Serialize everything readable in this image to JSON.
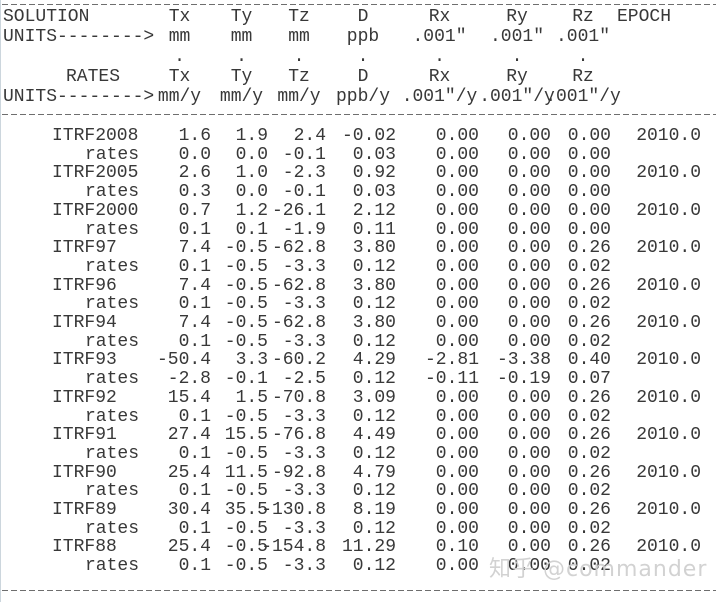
{
  "table": {
    "header": {
      "solution_label": "SOLUTION",
      "units_arrow": "UNITS-------->",
      "rates_label": "RATES",
      "epoch_label": "EPOCH",
      "derivative_dot": ".",
      "columns": [
        "Tx",
        "Ty",
        "Tz",
        "D",
        "Rx",
        "Ry",
        "Rz"
      ],
      "units": [
        "mm",
        "mm",
        "mm",
        "ppb",
        ".001″",
        ".001″",
        ".001″"
      ],
      "rate_units": [
        "mm/y",
        "mm/y",
        "mm/y",
        "ppb/y",
        ".001″/y",
        ".001″/y",
        ".001″/y"
      ]
    },
    "rows": [
      {
        "name": "ITRF2008",
        "values": [
          "1.6",
          "1.9",
          "2.4",
          "-0.02",
          "0.00",
          "0.00",
          "0.00"
        ],
        "epoch": "2010.0"
      },
      {
        "name": "rates",
        "values": [
          "0.0",
          "0.0",
          "-0.1",
          "0.03",
          "0.00",
          "0.00",
          "0.00"
        ],
        "epoch": ""
      },
      {
        "name": "ITRF2005",
        "values": [
          "2.6",
          "1.0",
          "-2.3",
          "0.92",
          "0.00",
          "0.00",
          "0.00"
        ],
        "epoch": "2010.0"
      },
      {
        "name": "rates",
        "values": [
          "0.3",
          "0.0",
          "-0.1",
          "0.03",
          "0.00",
          "0.00",
          "0.00"
        ],
        "epoch": ""
      },
      {
        "name": "ITRF2000",
        "values": [
          "0.7",
          "1.2",
          "-26.1",
          "2.12",
          "0.00",
          "0.00",
          "0.00"
        ],
        "epoch": "2010.0"
      },
      {
        "name": "rates",
        "values": [
          "0.1",
          "0.1",
          "-1.9",
          "0.11",
          "0.00",
          "0.00",
          "0.00"
        ],
        "epoch": ""
      },
      {
        "name": "ITRF97",
        "values": [
          "7.4",
          "-0.5",
          "-62.8",
          "3.80",
          "0.00",
          "0.00",
          "0.26"
        ],
        "epoch": "2010.0"
      },
      {
        "name": "rates",
        "values": [
          "0.1",
          "-0.5",
          "-3.3",
          "0.12",
          "0.00",
          "0.00",
          "0.02"
        ],
        "epoch": ""
      },
      {
        "name": "ITRF96",
        "values": [
          "7.4",
          "-0.5",
          "-62.8",
          "3.80",
          "0.00",
          "0.00",
          "0.26"
        ],
        "epoch": "2010.0"
      },
      {
        "name": "rates",
        "values": [
          "0.1",
          "-0.5",
          "-3.3",
          "0.12",
          "0.00",
          "0.00",
          "0.02"
        ],
        "epoch": ""
      },
      {
        "name": "ITRF94",
        "values": [
          "7.4",
          "-0.5",
          "-62.8",
          "3.80",
          "0.00",
          "0.00",
          "0.26"
        ],
        "epoch": "2010.0"
      },
      {
        "name": "rates",
        "values": [
          "0.1",
          "-0.5",
          "-3.3",
          "0.12",
          "0.00",
          "0.00",
          "0.02"
        ],
        "epoch": ""
      },
      {
        "name": "ITRF93",
        "values": [
          "-50.4",
          "3.3",
          "-60.2",
          "4.29",
          "-2.81",
          "-3.38",
          "0.40"
        ],
        "epoch": "2010.0"
      },
      {
        "name": "rates",
        "values": [
          "-2.8",
          "-0.1",
          "-2.5",
          "0.12",
          "-0.11",
          "-0.19",
          "0.07"
        ],
        "epoch": ""
      },
      {
        "name": "ITRF92",
        "values": [
          "15.4",
          "1.5",
          "-70.8",
          "3.09",
          "0.00",
          "0.00",
          "0.26"
        ],
        "epoch": "2010.0"
      },
      {
        "name": "rates",
        "values": [
          "0.1",
          "-0.5",
          "-3.3",
          "0.12",
          "0.00",
          "0.00",
          "0.02"
        ],
        "epoch": ""
      },
      {
        "name": "ITRF91",
        "values": [
          "27.4",
          "15.5",
          "-76.8",
          "4.49",
          "0.00",
          "0.00",
          "0.26"
        ],
        "epoch": "2010.0"
      },
      {
        "name": "rates",
        "values": [
          "0.1",
          "-0.5",
          "-3.3",
          "0.12",
          "0.00",
          "0.00",
          "0.02"
        ],
        "epoch": ""
      },
      {
        "name": "ITRF90",
        "values": [
          "25.4",
          "11.5",
          "-92.8",
          "4.79",
          "0.00",
          "0.00",
          "0.26"
        ],
        "epoch": "2010.0"
      },
      {
        "name": "rates",
        "values": [
          "0.1",
          "-0.5",
          "-3.3",
          "0.12",
          "0.00",
          "0.00",
          "0.02"
        ],
        "epoch": ""
      },
      {
        "name": "ITRF89",
        "values": [
          "30.4",
          "35.5",
          "-130.8",
          "8.19",
          "0.00",
          "0.00",
          "0.26"
        ],
        "epoch": "2010.0"
      },
      {
        "name": "rates",
        "values": [
          "0.1",
          "-0.5",
          "-3.3",
          "0.12",
          "0.00",
          "0.00",
          "0.02"
        ],
        "epoch": ""
      },
      {
        "name": "ITRF88",
        "values": [
          "25.4",
          "-0.5",
          "-154.8",
          "11.29",
          "0.10",
          "0.00",
          "0.26"
        ],
        "epoch": "2010.0"
      },
      {
        "name": "rates",
        "values": [
          "0.1",
          "-0.5",
          "-3.3",
          "0.12",
          "0.00",
          "0.00",
          "0.02"
        ],
        "epoch": ""
      }
    ]
  },
  "watermark": {
    "text": "知乎 @commander"
  }
}
